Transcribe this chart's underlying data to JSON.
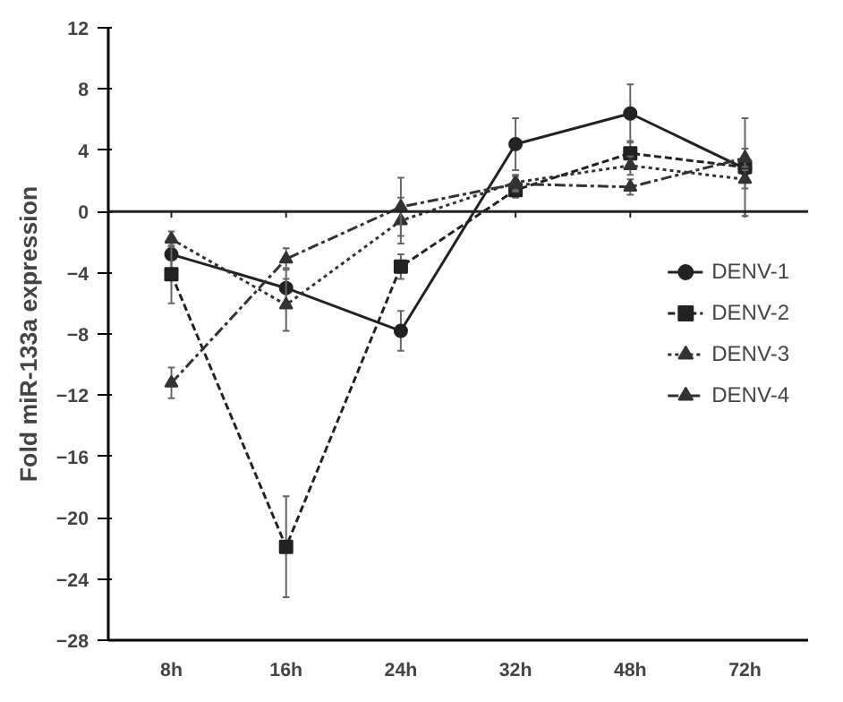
{
  "chart_data": {
    "type": "line",
    "ylabel": "Fold miR-133a expression",
    "categories": [
      "8h",
      "16h",
      "24h",
      "32h",
      "48h",
      "72h"
    ],
    "ylim": [
      -28,
      12
    ],
    "yticks": [
      -28,
      -24,
      -20,
      -16,
      -12,
      -8,
      -4,
      0,
      4,
      8,
      12
    ],
    "grid": false,
    "legend": "right",
    "ref_lines": [
      {
        "axis": "y",
        "value": 0,
        "label": null,
        "color": "#222222",
        "line_style": "solid"
      }
    ],
    "series": [
      {
        "name": "DENV-1",
        "color": "#222222",
        "marker": "circle",
        "line_style": "solid",
        "values": [
          -2.8,
          -5.0,
          -7.8,
          4.4,
          6.4,
          2.8
        ],
        "errors": [
          1.0,
          1.3,
          1.3,
          1.7,
          1.9,
          0.8
        ]
      },
      {
        "name": "DENV-2",
        "color": "#222222",
        "marker": "square",
        "line_style": "dashed",
        "values": [
          -4.1,
          -21.9,
          -3.6,
          1.4,
          3.8,
          2.9
        ],
        "errors": [
          1.9,
          3.3,
          0.8,
          0.5,
          0.8,
          3.2
        ]
      },
      {
        "name": "DENV-3",
        "color": "#333333",
        "marker": "triangle",
        "line_style": "dotted",
        "values": [
          -1.8,
          -6.1,
          -0.6,
          1.9,
          3.0,
          2.1
        ],
        "errors": [
          0.5,
          1.7,
          1.5,
          0.5,
          0.6,
          0.6
        ]
      },
      {
        "name": "DENV-4",
        "color": "#333333",
        "marker": "triangle",
        "line_style": "dashdot",
        "values": [
          -11.2,
          -3.1,
          0.3,
          1.8,
          1.6,
          3.5
        ],
        "errors": [
          1.0,
          0.7,
          1.9,
          0.5,
          0.5,
          0.6
        ]
      }
    ]
  }
}
